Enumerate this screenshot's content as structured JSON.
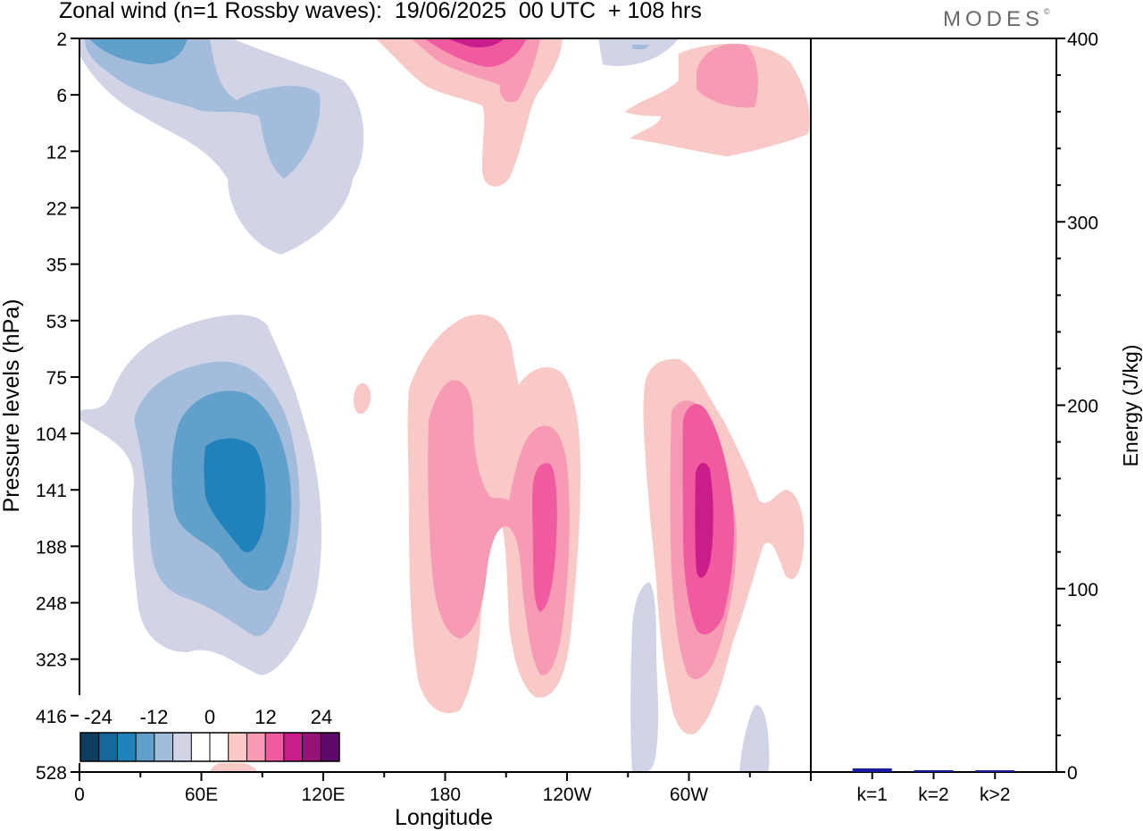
{
  "title": "Zonal wind (n=1 Rossby waves):  19/06/2025  00 UTC  + 108 hrs",
  "brand": "MODES",
  "brand_mark": "©",
  "chart_data": [
    {
      "type": "heatmap",
      "title": "Zonal wind (n=1 Rossby waves):  19/06/2025  00 UTC  + 108 hrs",
      "xlabel": "Longitude",
      "ylabel": "Pressure levels (hPa)",
      "x_ticks": [
        {
          "label": "0",
          "lon": 0
        },
        {
          "label": "60E",
          "lon": 60
        },
        {
          "label": "120E",
          "lon": 120
        },
        {
          "label": "180",
          "lon": 180
        },
        {
          "label": "120W",
          "lon": 240
        },
        {
          "label": "60W",
          "lon": 300
        }
      ],
      "xlim": [
        0,
        360
      ],
      "y_levels": [
        "2",
        "6",
        "12",
        "22",
        "35",
        "53",
        "75",
        "104",
        "141",
        "188",
        "248",
        "323",
        "416",
        "528"
      ],
      "colorbar": {
        "tick_labels": [
          "-24",
          "-12",
          "0",
          "12",
          "24"
        ],
        "colors": [
          "#0f3d5f",
          "#14689a",
          "#2181bb",
          "#62a0cc",
          "#a3bcdb",
          "#d1d4e6",
          "#ffffff",
          "#ffffff",
          "#f8c9c6",
          "#f79ab3",
          "#ef5aa0",
          "#c91d8a",
          "#951377",
          "#5c0b68"
        ]
      },
      "contours": {
        "negative": {
          "light": "#d1d4e6",
          "mid": "#a3bcdb",
          "strong": "#62a0cc",
          "max": "#2181bb"
        },
        "positive": {
          "light": "#f8c9c6",
          "mid": "#f79ab3",
          "strong": "#ef5aa0",
          "max": "#c91d8a"
        }
      }
    },
    {
      "type": "bar",
      "ylabel": "Energy (J/kg)",
      "ylim": [
        0,
        400
      ],
      "y_ticks": [
        "0",
        "100",
        "200",
        "300",
        "400"
      ],
      "categories": [
        "k=1",
        "k=2",
        "k>2"
      ],
      "values": [
        2,
        1,
        0.5
      ],
      "bar_color": "#1a1a9e"
    }
  ]
}
